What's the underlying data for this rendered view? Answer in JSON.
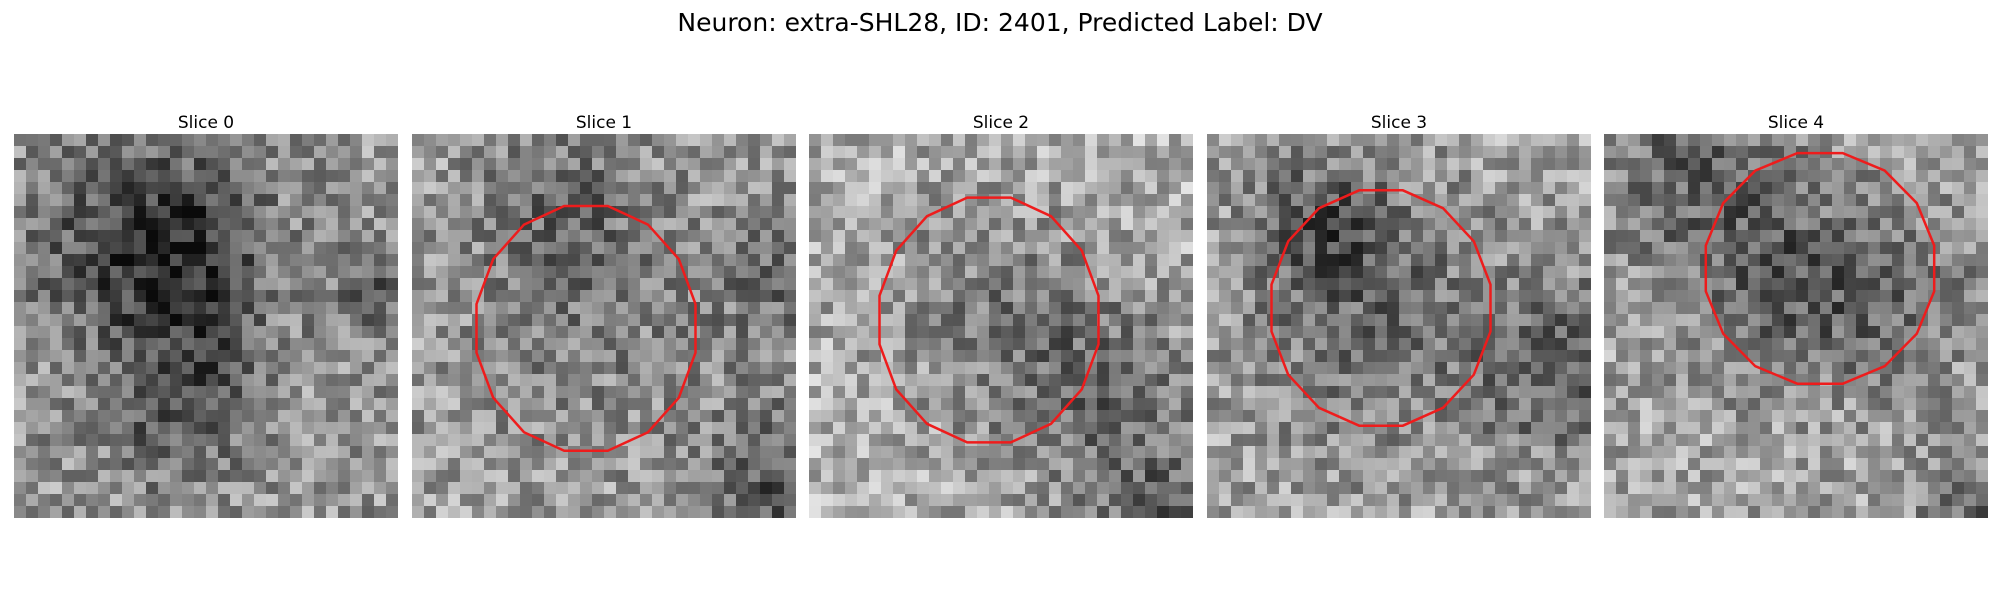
{
  "figure": {
    "title": "Neuron: extra-SHL28, ID: 2401, Predicted Label: DV",
    "contour_color": "#ee1c1c",
    "image_colormap": "grayscale",
    "panels": [
      {
        "title": "Slice 0",
        "has_contour": false
      },
      {
        "title": "Slice 1",
        "has_contour": true
      },
      {
        "title": "Slice 2",
        "has_contour": true
      },
      {
        "title": "Slice 3",
        "has_contour": true
      },
      {
        "title": "Slice 4",
        "has_contour": true
      }
    ]
  }
}
